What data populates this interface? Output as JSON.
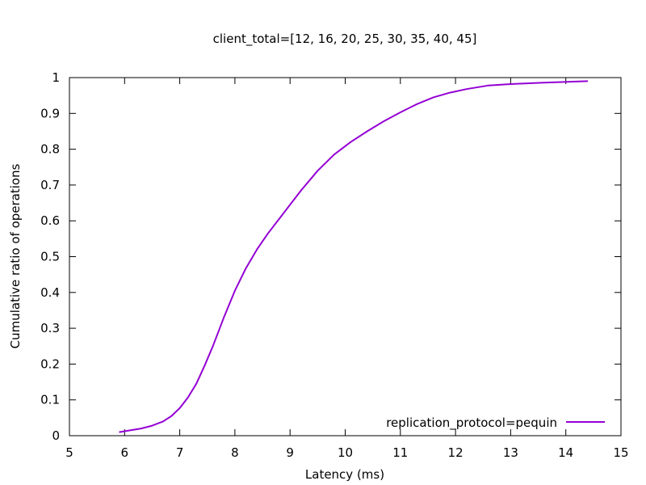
{
  "chart_data": {
    "type": "line",
    "title": "client_total=[12, 16, 20, 25, 30, 35, 40, 45]",
    "xlabel": "Latency (ms)",
    "ylabel": "Cumulative ratio of operations",
    "xlim": [
      5,
      15
    ],
    "ylim": [
      0,
      1
    ],
    "xticks": [
      "5",
      "6",
      "7",
      "8",
      "9",
      "10",
      "11",
      "12",
      "13",
      "14",
      "15"
    ],
    "yticks": [
      "0",
      "0.1",
      "0.2",
      "0.3",
      "0.4",
      "0.5",
      "0.6",
      "0.7",
      "0.8",
      "0.9",
      "1"
    ],
    "grid": false,
    "legend_position": "bottom-right",
    "series": [
      {
        "name": "replication_protocol=pequin",
        "color": "#9400d3",
        "x": [
          5.9,
          6.1,
          6.3,
          6.5,
          6.7,
          6.85,
          7.0,
          7.15,
          7.3,
          7.45,
          7.6,
          7.8,
          8.0,
          8.2,
          8.4,
          8.6,
          8.9,
          9.2,
          9.5,
          9.8,
          10.1,
          10.4,
          10.7,
          11.0,
          11.3,
          11.6,
          11.9,
          12.2,
          12.6,
          13.0,
          13.6,
          14.4
        ],
        "y": [
          0.01,
          0.015,
          0.02,
          0.028,
          0.04,
          0.055,
          0.077,
          0.107,
          0.145,
          0.195,
          0.25,
          0.33,
          0.405,
          0.468,
          0.52,
          0.565,
          0.625,
          0.685,
          0.74,
          0.785,
          0.82,
          0.85,
          0.878,
          0.903,
          0.926,
          0.945,
          0.958,
          0.968,
          0.978,
          0.982,
          0.986,
          0.99
        ]
      }
    ]
  }
}
